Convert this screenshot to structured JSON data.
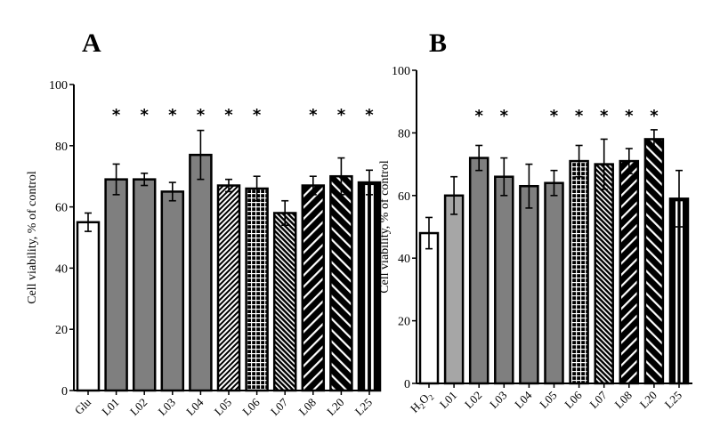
{
  "chart_data": [
    {
      "type": "bar",
      "panel": "A",
      "title": "A",
      "xlabel": "",
      "ylabel": "Cell viability, % of control",
      "ylim": [
        0,
        100
      ],
      "yticks": [
        0,
        20,
        40,
        60,
        80,
        100
      ],
      "grid": false,
      "categories": [
        "Glu",
        "L01",
        "L02",
        "L03",
        "L04",
        "L05",
        "L06",
        "L07",
        "L08",
        "L20",
        "L25"
      ],
      "values": [
        55,
        69,
        69,
        65,
        77,
        67,
        66,
        58,
        67,
        70,
        68
      ],
      "errors": [
        3,
        5,
        2,
        3,
        8,
        2,
        4,
        4,
        3,
        6,
        4
      ],
      "significant": [
        false,
        true,
        true,
        true,
        true,
        true,
        true,
        false,
        true,
        true,
        true
      ],
      "significance_marker": "*",
      "fills": [
        "white",
        "grey",
        "grey",
        "grey",
        "grey",
        "dense-diag",
        "grid",
        "dense-diag-r",
        "diag-down",
        "diag-up",
        "vstripe"
      ]
    },
    {
      "type": "bar",
      "panel": "B",
      "title": "B",
      "xlabel": "",
      "ylabel": "Cell viability, % of control",
      "ylim": [
        0,
        100
      ],
      "yticks": [
        0,
        20,
        40,
        60,
        80,
        100
      ],
      "grid": false,
      "categories": [
        "H2O2",
        "L01",
        "L02",
        "L03",
        "L04",
        "L05",
        "L06",
        "L07",
        "L08",
        "L20",
        "L25"
      ],
      "values": [
        48,
        60,
        72,
        66,
        63,
        64,
        71,
        70,
        71,
        78,
        59
      ],
      "errors": [
        5,
        6,
        4,
        6,
        7,
        4,
        5,
        8,
        4,
        3,
        9
      ],
      "significant": [
        false,
        false,
        true,
        true,
        false,
        true,
        true,
        true,
        true,
        true,
        false
      ],
      "significance_marker": "*",
      "fills": [
        "white",
        "lightgrey",
        "grey",
        "grey",
        "grey",
        "grey",
        "grid",
        "dense-diag-r",
        "diag-down",
        "diag-up",
        "vstripe"
      ]
    }
  ],
  "colors": {
    "grey": "#7f7f7f",
    "lightgrey": "#a6a6a6",
    "axis": "#000000"
  }
}
